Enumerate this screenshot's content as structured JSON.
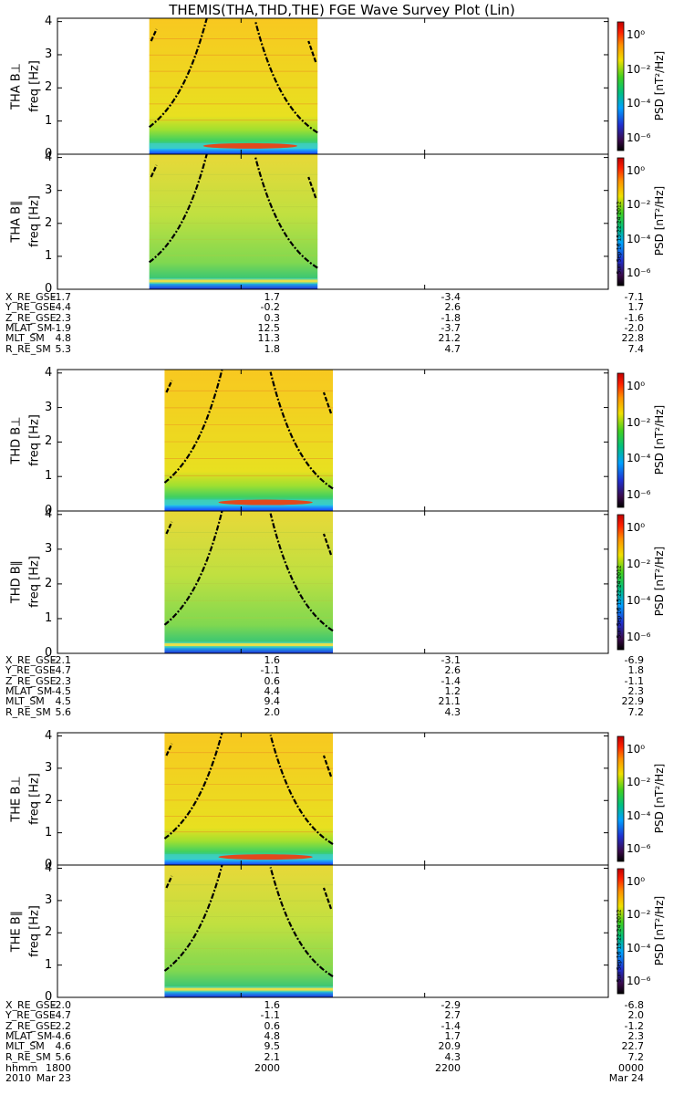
{
  "title": "THEMIS(THA,THD,THE) FGE Wave Survey Plot (Lin)",
  "colorbar": {
    "label": "PSD [nT²/Hz]",
    "ticks": [
      "10⁰",
      "10⁻²",
      "10⁻⁴",
      "10⁻⁶"
    ],
    "stamp": "Sun Sep 16 15:22:24 2012"
  },
  "chart_data": {
    "type": "heatmap",
    "x_axis": {
      "unit": "hhmm",
      "tick_labels": [
        "1800",
        "2000",
        "2200",
        "0000"
      ],
      "date_labels": [
        "2010",
        "Mar 23",
        "Mar 24"
      ]
    },
    "y_axis": {
      "label": "freq [Hz]",
      "ticks": [
        "0",
        "1",
        "2",
        "3",
        "4"
      ],
      "ylim": [
        0,
        4.1
      ]
    },
    "color_scale": {
      "label": "PSD [nT²/Hz]",
      "log_range": [
        -7,
        1
      ]
    },
    "probes": [
      {
        "probe": "THA",
        "panels": [
          {
            "name": "THA B⊥",
            "data_start": "1900",
            "data_end": "2050",
            "band_hz": 0.25
          },
          {
            "name": "THA B∥",
            "data_start": "1900",
            "data_end": "2050",
            "band_hz": 0.25
          }
        ],
        "ephemeris": [
          {
            "label": "X_RE_GSE",
            "values": [
              "-1.7",
              "1.7",
              "-3.4",
              "-7.1"
            ]
          },
          {
            "label": "Y_RE_GSE",
            "values": [
              "-4.4",
              "-0.2",
              "2.6",
              "1.7"
            ]
          },
          {
            "label": "Z_RE_GSE",
            "values": [
              "2.3",
              "0.3",
              "-1.8",
              "-1.6"
            ]
          },
          {
            "label": "MLAT_SM",
            "values": [
              "-1.9",
              "12.5",
              "-3.7",
              "-2.0"
            ]
          },
          {
            "label": "MLT_SM",
            "values": [
              "4.8",
              "11.3",
              "21.2",
              "22.8"
            ]
          },
          {
            "label": "R_RE_SM",
            "values": [
              "5.3",
              "1.8",
              "4.7",
              "7.4"
            ]
          }
        ]
      },
      {
        "probe": "THD",
        "panels": [
          {
            "name": "THD B⊥",
            "data_start": "1910",
            "data_end": "2100",
            "band_hz": 0.25
          },
          {
            "name": "THD B∥",
            "data_start": "1910",
            "data_end": "2100",
            "band_hz": 0.25
          }
        ],
        "ephemeris": [
          {
            "label": "X_RE_GSE",
            "values": [
              "-2.1",
              "1.6",
              "-3.1",
              "-6.9"
            ]
          },
          {
            "label": "Y_RE_GSE",
            "values": [
              "-4.7",
              "-1.1",
              "2.6",
              "1.8"
            ]
          },
          {
            "label": "Z_RE_GSE",
            "values": [
              "2.3",
              "0.6",
              "-1.4",
              "-1.1"
            ]
          },
          {
            "label": "MLAT_SM",
            "values": [
              "-4.5",
              "4.4",
              "1.2",
              "2.3"
            ]
          },
          {
            "label": "MLT_SM",
            "values": [
              "4.5",
              "9.4",
              "21.1",
              "22.9"
            ]
          },
          {
            "label": "R_RE_SM",
            "values": [
              "5.6",
              "2.0",
              "4.3",
              "7.2"
            ]
          }
        ]
      },
      {
        "probe": "THE",
        "panels": [
          {
            "name": "THE B⊥",
            "data_start": "1910",
            "data_end": "2100",
            "band_hz": 0.25
          },
          {
            "name": "THE B∥",
            "data_start": "1910",
            "data_end": "2100",
            "band_hz": 0.25
          }
        ],
        "ephemeris": [
          {
            "label": "X_RE_GSE",
            "values": [
              "-2.0",
              "1.6",
              "-2.9",
              "-6.8"
            ]
          },
          {
            "label": "Y_RE_GSE",
            "values": [
              "-4.7",
              "-1.1",
              "2.7",
              "2.0"
            ]
          },
          {
            "label": "Z_RE_GSE",
            "values": [
              "2.2",
              "0.6",
              "-1.4",
              "-1.2"
            ]
          },
          {
            "label": "MLAT_SM",
            "values": [
              "-4.6",
              "4.8",
              "1.7",
              "2.3"
            ]
          },
          {
            "label": "MLT_SM",
            "values": [
              "4.6",
              "9.5",
              "20.9",
              "22.7"
            ]
          },
          {
            "label": "R_RE_SM",
            "values": [
              "5.6",
              "2.1",
              "4.3",
              "7.2"
            ]
          }
        ]
      }
    ]
  }
}
